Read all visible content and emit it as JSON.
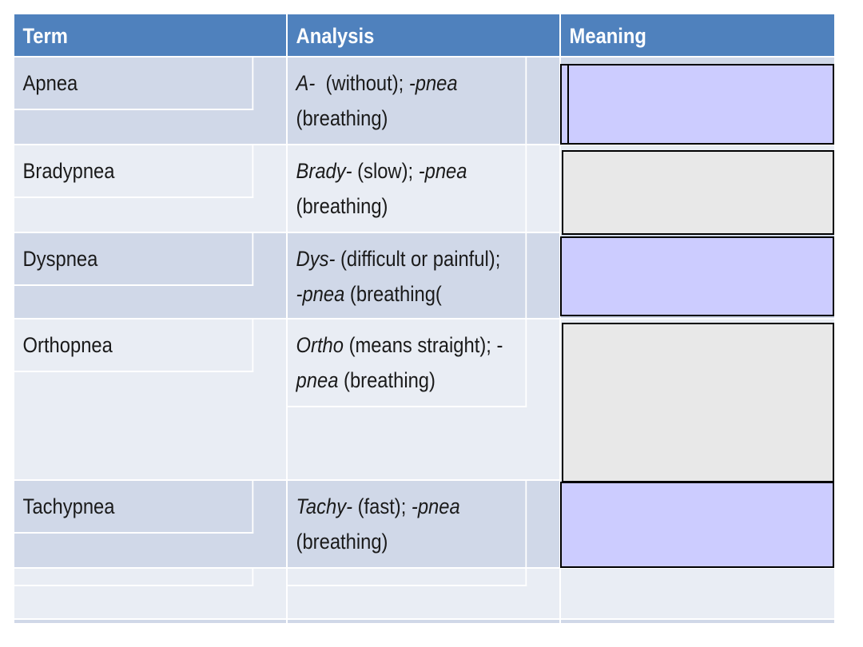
{
  "table": {
    "headers": [
      "Term",
      "Analysis",
      "Meaning"
    ],
    "rows": [
      {
        "term": "Apnea",
        "analysis_prefix": "A-",
        "analysis_prefix_gloss": "  (without); ",
        "analysis_suffix": "-pnea",
        "analysis_suffix_gloss": " (breathing)",
        "meaning": ""
      },
      {
        "term": "Bradypnea",
        "analysis_prefix": "Brady-",
        "analysis_prefix_gloss": " (slow); ",
        "analysis_suffix": "-pnea",
        "analysis_suffix_gloss": " (breathing)",
        "meaning": ""
      },
      {
        "term": "Dyspnea",
        "analysis_prefix": "Dys-",
        "analysis_prefix_gloss": " (difficult or painful); ",
        "analysis_suffix": "-pnea",
        "analysis_suffix_gloss": " (breathing(",
        "meaning": ""
      },
      {
        "term": "Orthopnea",
        "analysis_prefix": "Ortho",
        "analysis_prefix_gloss": " (means straight); -",
        "analysis_suffix": "pnea",
        "analysis_suffix_gloss": " (breathing)",
        "meaning": ""
      },
      {
        "term": "Tachypnea",
        "analysis_prefix": "Tachy-",
        "analysis_prefix_gloss": " (fast); ",
        "analysis_suffix": "-pnea",
        "analysis_suffix_gloss": " (breathing)",
        "meaning": ""
      },
      {
        "term": "",
        "analysis_prefix": "",
        "analysis_prefix_gloss": "",
        "analysis_suffix": "",
        "analysis_suffix_gloss": "",
        "meaning": ""
      }
    ]
  },
  "colors": {
    "header": "#4f81bd",
    "row_dark": "#d0d8e8",
    "row_light": "#e9edf4",
    "meaning_blue": "#ccccff",
    "meaning_gray": "#e8e8e8"
  }
}
